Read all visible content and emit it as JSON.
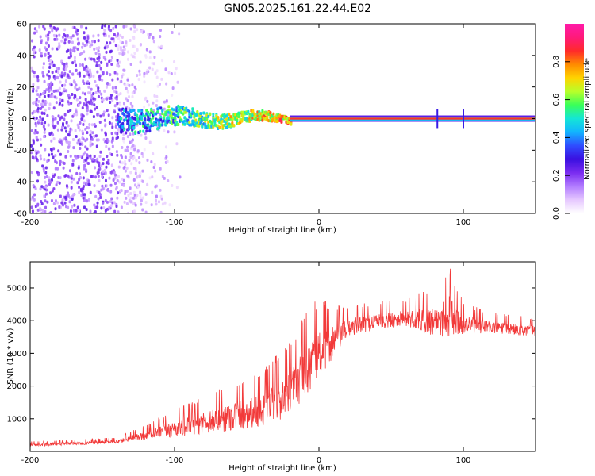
{
  "figure_title": "GN05.2025.161.22.44.E02",
  "colors": {
    "axis": "#000000",
    "snr_line": "#f23a3a",
    "colormap": [
      "#ffffff",
      "#e6c8ff",
      "#b27cff",
      "#7a2cf0",
      "#3a10e0",
      "#2f4cff",
      "#12b4ff",
      "#14e6d6",
      "#39ff5a",
      "#b8ff2a",
      "#ffd400",
      "#ff8a00",
      "#ff2a2a",
      "#ff1a7a",
      "#ff1aa8"
    ]
  },
  "chart_data": [
    {
      "type": "heatmap",
      "title": "GN05.2025.161.22.44.E02",
      "xlabel": "Height of straight line (km)",
      "ylabel": "Frequency (Hz)",
      "xlim": [
        -200,
        150
      ],
      "ylim": [
        -60,
        60
      ],
      "x_ticks": [
        -200,
        -100,
        0,
        100
      ],
      "y_ticks": [
        -60,
        -40,
        -20,
        0,
        20,
        40,
        60
      ],
      "colorbar": {
        "label": "Normalized spectral amplitude",
        "range": [
          0,
          1
        ],
        "ticks": [
          "0.0",
          "0.2",
          "0.4",
          "0.6",
          "0.8"
        ]
      },
      "features": {
        "noise_region_x": [
          -200,
          -140
        ],
        "noise_fade_x": [
          -140,
          -110
        ],
        "signal_band_center_hz": 0,
        "signal_band_halfwidth_hz": 2,
        "signal_onset_x": -140,
        "strong_signal_from_x": -20,
        "spike_x": [
          82,
          100
        ]
      }
    },
    {
      "type": "line",
      "title": "",
      "xlabel": "Height of straight line (km)",
      "ylabel": "SNR (10 * v/v)",
      "xlim": [
        -200,
        150
      ],
      "ylim": [
        0,
        5800
      ],
      "x_ticks": [
        -200,
        -100,
        0,
        100
      ],
      "y_ticks": [
        1000,
        2000,
        3000,
        4000,
        5000
      ],
      "series": [
        {
          "x": [
            -200,
            -170,
            -140,
            -120,
            -100,
            -80,
            -60,
            -40,
            -20,
            -10,
            0,
            10,
            20,
            40,
            60,
            80,
            90,
            100,
            120,
            150
          ],
          "y": [
            200,
            250,
            300,
            500,
            700,
            900,
            1100,
            1300,
            1800,
            2500,
            3000,
            3400,
            3800,
            4000,
            4100,
            4000,
            4200,
            3900,
            3800,
            3700
          ],
          "jitter": [
            80,
            90,
            100,
            250,
            450,
            600,
            800,
            900,
            1200,
            1400,
            1300,
            900,
            500,
            450,
            450,
            800,
            1200,
            500,
            350,
            300
          ]
        }
      ]
    }
  ]
}
